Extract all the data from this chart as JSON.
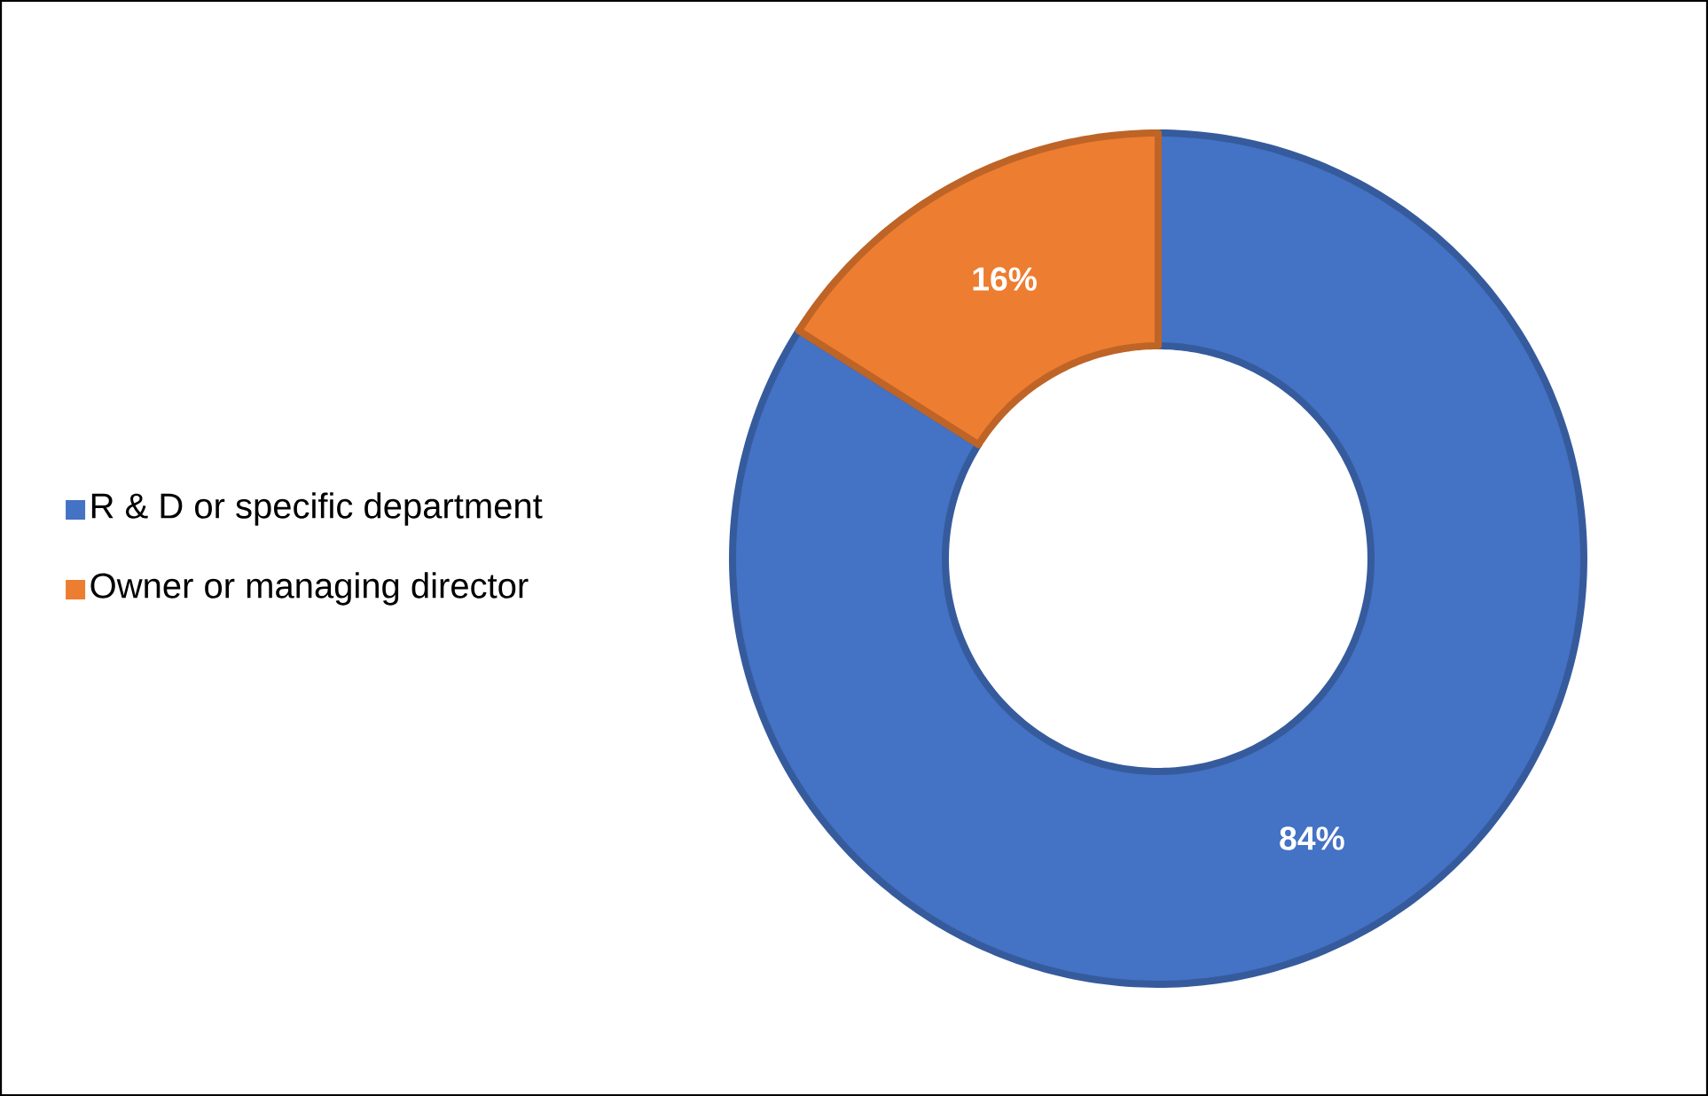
{
  "chart_data": {
    "type": "donut",
    "categories": [
      "R & D or specific department",
      "Owner or managing director"
    ],
    "values": [
      84,
      16
    ],
    "colors": [
      "#4472c4",
      "#ed7d31"
    ],
    "value_labels": [
      "84%",
      "16%"
    ],
    "legend": "left"
  }
}
